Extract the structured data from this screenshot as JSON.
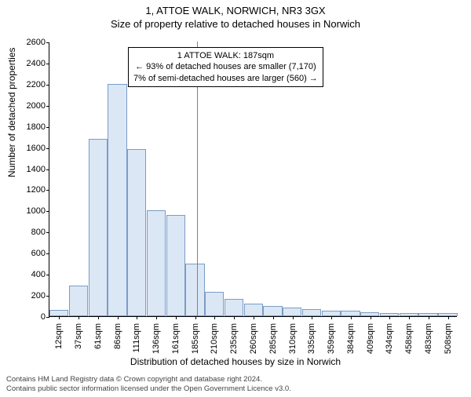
{
  "title_main": "1, ATTOE WALK, NORWICH, NR3 3GX",
  "title_sub": "Size of property relative to detached houses in Norwich",
  "ylabel": "Number of detached properties",
  "xlabel": "Distribution of detached houses by size in Norwich",
  "footer_line1": "Contains HM Land Registry data © Crown copyright and database right 2024.",
  "footer_line2": "Contains public sector information licensed under the Open Government Licence v3.0.",
  "chart": {
    "type": "histogram",
    "ylim": [
      0,
      2600
    ],
    "ytick_step": 200,
    "bar_fill": "#dbe7f5",
    "bar_stroke": "#7a9cc6",
    "marker_color": "#d06060",
    "marker_x_value": 187,
    "background_color": "#ffffff",
    "x_labels": [
      "12sqm",
      "37sqm",
      "61sqm",
      "86sqm",
      "111sqm",
      "136sqm",
      "161sqm",
      "185sqm",
      "210sqm",
      "235sqm",
      "260sqm",
      "285sqm",
      "310sqm",
      "335sqm",
      "359sqm",
      "384sqm",
      "409sqm",
      "434sqm",
      "458sqm",
      "483sqm",
      "508sqm"
    ],
    "values": [
      60,
      290,
      1680,
      2200,
      1580,
      1000,
      960,
      500,
      230,
      160,
      120,
      100,
      80,
      70,
      50,
      50,
      40,
      30,
      30,
      30,
      30
    ]
  },
  "info_box": {
    "line1": "1 ATTOE WALK: 187sqm",
    "line2": "← 93% of detached houses are smaller (7,170)",
    "line3": "7% of semi-detached houses are larger (560) →"
  }
}
